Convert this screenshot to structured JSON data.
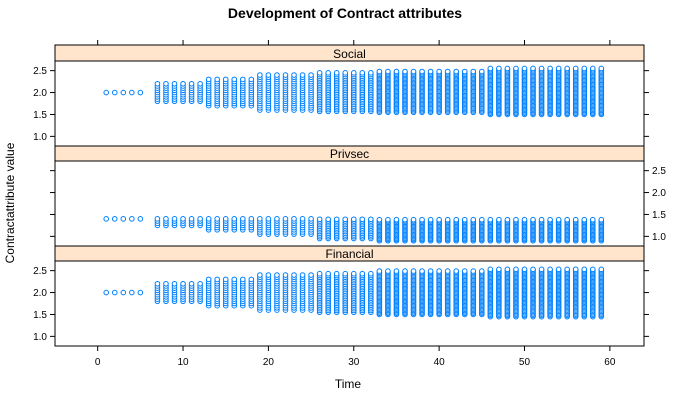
{
  "chart_data": {
    "type": "scatter",
    "title": "Development of Contract attributes",
    "xlabel": "Time",
    "ylabel": "Contractattribute value",
    "xlim": [
      -5,
      64
    ],
    "ylim": [
      0.78,
      2.72
    ],
    "xticks": [
      "0",
      "10",
      "20",
      "30",
      "40",
      "50",
      "60"
    ],
    "yticks": [
      "1.0",
      "1.5",
      "2.0",
      "2.5"
    ],
    "point_color": "#0080ff",
    "strip_color": "#ffe5cc",
    "panels": [
      {
        "name": "Social",
        "y_axis_side": "left",
        "segments": [
          {
            "t_from": 1,
            "t_to": 5,
            "min": 2.0,
            "max": 2.0,
            "step": 0.1
          },
          {
            "t_from": 7,
            "t_to": 12,
            "min": 1.8,
            "max": 2.2,
            "step": 0.05
          },
          {
            "t_from": 13,
            "t_to": 18,
            "min": 1.7,
            "max": 2.3,
            "step": 0.05
          },
          {
            "t_from": 19,
            "t_to": 25,
            "min": 1.6,
            "max": 2.4,
            "step": 0.05
          },
          {
            "t_from": 26,
            "t_to": 32,
            "min": 1.57,
            "max": 2.45,
            "step": 0.04
          },
          {
            "t_from": 33,
            "t_to": 45,
            "min": 1.55,
            "max": 2.5,
            "step": 0.03
          },
          {
            "t_from": 46,
            "t_to": 59,
            "min": 1.5,
            "max": 2.55,
            "step": 0.03
          }
        ]
      },
      {
        "name": "Privsec",
        "y_axis_side": "right",
        "segments": [
          {
            "t_from": 1,
            "t_to": 5,
            "min": 1.4,
            "max": 1.4,
            "step": 0.1
          },
          {
            "t_from": 7,
            "t_to": 12,
            "min": 1.25,
            "max": 1.4,
            "step": 0.05
          },
          {
            "t_from": 13,
            "t_to": 18,
            "min": 1.15,
            "max": 1.4,
            "step": 0.05
          },
          {
            "t_from": 19,
            "t_to": 25,
            "min": 1.05,
            "max": 1.4,
            "step": 0.05
          },
          {
            "t_from": 26,
            "t_to": 32,
            "min": 0.95,
            "max": 1.4,
            "step": 0.04
          },
          {
            "t_from": 33,
            "t_to": 59,
            "min": 0.9,
            "max": 1.4,
            "step": 0.03
          }
        ]
      },
      {
        "name": "Financial",
        "y_axis_side": "left",
        "segments": [
          {
            "t_from": 1,
            "t_to": 5,
            "min": 2.0,
            "max": 2.0,
            "step": 0.1
          },
          {
            "t_from": 7,
            "t_to": 12,
            "min": 1.8,
            "max": 2.2,
            "step": 0.05
          },
          {
            "t_from": 13,
            "t_to": 18,
            "min": 1.7,
            "max": 2.3,
            "step": 0.05
          },
          {
            "t_from": 19,
            "t_to": 25,
            "min": 1.6,
            "max": 2.4,
            "step": 0.05
          },
          {
            "t_from": 26,
            "t_to": 32,
            "min": 1.55,
            "max": 2.45,
            "step": 0.04
          },
          {
            "t_from": 33,
            "t_to": 45,
            "min": 1.5,
            "max": 2.5,
            "step": 0.03
          },
          {
            "t_from": 46,
            "t_to": 59,
            "min": 1.45,
            "max": 2.55,
            "step": 0.03
          }
        ]
      }
    ]
  }
}
